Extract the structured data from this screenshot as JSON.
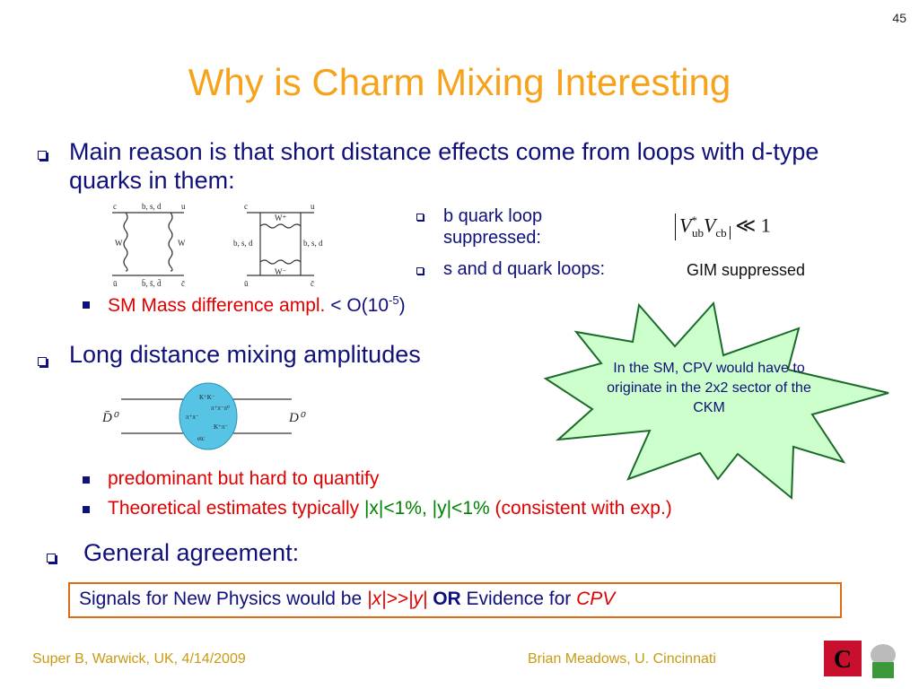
{
  "page_number": "45",
  "title": "Why is Charm Mixing Interesting",
  "bullet_1": {
    "text": "Main reason is that short distance effects come from loops with d-type quarks in them:",
    "diagram_1": {
      "tl": "c",
      "top": "b, s, d",
      "tr": "u",
      "left": "W",
      "right": "W",
      "bl": "ū",
      "bottom": "b̄, s̄, d̄",
      "br": "c̄"
    },
    "diagram_2": {
      "tl": "c",
      "top": "W⁺",
      "tr": "u",
      "left": "b, s, d",
      "right": "b, s, d",
      "bl": "ū",
      "bottom": "W⁻",
      "br": "c̄"
    },
    "b_loop": "b quark loop suppressed:",
    "formula": {
      "v1": "V",
      "sup1": "*",
      "sub1": "ub",
      "v2": "V",
      "sub2": "cb",
      "rel": "≪ 1"
    },
    "sd_loop": "s and d quark loops:",
    "gim": "GIM suppressed",
    "sm_mass": "SM Mass difference ampl.",
    "order_pre": "< O(10",
    "order_exp": "-5",
    "order_post": ")"
  },
  "bullet_2": {
    "text": "Long distance mixing amplitudes",
    "diagram_3": {
      "left": "D̄⁰",
      "right": "D⁰",
      "s1": "K⁺K⁻",
      "s2": "π⁺π⁻π⁰",
      "s3": "π⁺π⁻",
      "s4": "K⁺π⁻",
      "s5": "etc"
    },
    "sub_1": "predominant but hard to quantify",
    "sub_2_pre": "Theoretical estimates typically",
    "sub_2_mid": "|x|<1%, |y|<1%",
    "sub_2_post": "(consistent with exp.)"
  },
  "callout": "In the SM, CPV would have to originate in the 2x2 sector of the CKM",
  "bullet_3": "General agreement:",
  "box": {
    "pre": "Signals for New Physics would be",
    "cond": "|x|>>|y|",
    "or": "OR",
    "mid": "Evidence for",
    "cpv": "CPV"
  },
  "footer": {
    "left": "Super B, Warwick, UK, 4/14/2009",
    "right": "Brian Meadows, U. Cincinnati"
  }
}
